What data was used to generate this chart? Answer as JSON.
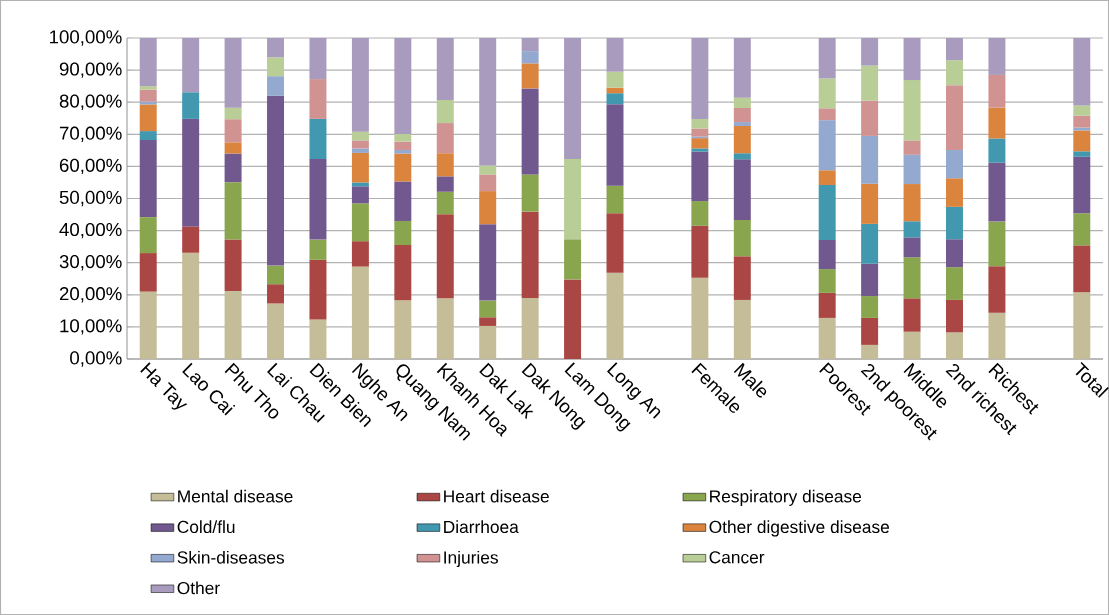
{
  "chart_data": {
    "type": "bar",
    "stacked": true,
    "categories": [
      "Ha Tay",
      "Lao Cai",
      "Phu Tho",
      "Lai Chau",
      "Dien Bien",
      "Nghe An",
      "Quang Nam",
      "Khanh Hoa",
      "Dak Lak",
      "Dak Nong",
      "Lam Dong",
      "Long An",
      null,
      "Female",
      "Male",
      null,
      "Poorest",
      "2nd poorest",
      "Middle",
      "2nd richest",
      "Richest",
      null,
      "Total"
    ],
    "series": [
      {
        "name": "Mental disease",
        "color": "#c4bd97",
        "values": [
          21.0,
          33.1,
          21.2,
          17.3,
          12.3,
          28.8,
          18.3,
          18.9,
          10.3,
          19.0,
          0,
          26.9,
          null,
          25.3,
          18.4,
          null,
          12.8,
          4.4,
          8.5,
          8.3,
          14.4,
          null,
          20.8
        ]
      },
      {
        "name": "Heart disease",
        "color": "#aa4643",
        "values": [
          12.0,
          8.2,
          16.0,
          6.0,
          18.6,
          7.9,
          17.2,
          26.2,
          2.7,
          26.9,
          24.8,
          18.5,
          null,
          16.2,
          13.6,
          null,
          7.8,
          8.4,
          10.4,
          10.1,
          14.5,
          null,
          14.6
        ]
      },
      {
        "name": "Respiratory disease",
        "color": "#89a54e",
        "values": [
          11.2,
          0,
          17.9,
          5.8,
          6.3,
          11.8,
          7.5,
          7.0,
          5.2,
          11.6,
          12.5,
          8.6,
          null,
          7.7,
          11.3,
          null,
          7.4,
          6.8,
          12.8,
          10.2,
          13.9,
          null,
          10.0
        ]
      },
      {
        "name": "Cold/flu",
        "color": "#71588f",
        "values": [
          24.0,
          33.5,
          8.9,
          52.9,
          25.1,
          5.3,
          12.3,
          4.8,
          23.8,
          26.8,
          0,
          25.4,
          null,
          15.4,
          18.9,
          null,
          9.1,
          10.1,
          6.2,
          8.7,
          18.4,
          null,
          17.6
        ]
      },
      {
        "name": "Diarrhoea",
        "color": "#4198af",
        "values": [
          2.8,
          8.3,
          0,
          0,
          12.5,
          1.2,
          0,
          0,
          0,
          0,
          0,
          3.4,
          null,
          1.0,
          1.9,
          null,
          17.1,
          12.4,
          5.0,
          10.1,
          7.5,
          null,
          1.7
        ]
      },
      {
        "name": "Other digestive disease",
        "color": "#db843d",
        "values": [
          8.3,
          0,
          3.5,
          0,
          0,
          9.2,
          8.7,
          7.2,
          10.3,
          7.8,
          0,
          1.7,
          null,
          3.2,
          8.5,
          null,
          4.6,
          12.5,
          11.6,
          8.9,
          9.6,
          null,
          6.5
        ]
      },
      {
        "name": "Skin-diseases",
        "color": "#93a9cf",
        "values": [
          0.9,
          0,
          0,
          6.1,
          0,
          1.4,
          1.1,
          0,
          0,
          3.8,
          0,
          0,
          null,
          0.5,
          1.2,
          null,
          15.6,
          14.9,
          9.1,
          8.8,
          0,
          null,
          0.9
        ]
      },
      {
        "name": "Injuries",
        "color": "#d19392",
        "values": [
          3.7,
          0,
          7.2,
          0,
          12.4,
          2.5,
          2.6,
          9.4,
          5.2,
          0,
          0,
          0,
          null,
          2.5,
          4.4,
          null,
          3.7,
          11.0,
          4.5,
          20.2,
          10.2,
          null,
          3.7
        ]
      },
      {
        "name": "Cancer",
        "color": "#b9cd96",
        "values": [
          1.1,
          0,
          3.6,
          5.9,
          0,
          2.7,
          2.4,
          7.2,
          2.8,
          0,
          25.0,
          5.0,
          null,
          3.0,
          3.2,
          null,
          9.3,
          10.9,
          18.8,
          7.8,
          0,
          null,
          3.2
        ]
      },
      {
        "name": "Other",
        "color": "#a99bbd",
        "values": [
          15.0,
          16.9,
          21.7,
          6.0,
          12.8,
          29.2,
          29.9,
          19.3,
          39.7,
          4.1,
          37.7,
          10.5,
          null,
          25.2,
          18.6,
          null,
          12.6,
          8.6,
          13.1,
          6.9,
          11.5,
          null,
          21.0
        ]
      }
    ],
    "ylim": [
      0,
      100
    ],
    "yticks": [
      {
        "value": 0,
        "label": "0,00%"
      },
      {
        "value": 10,
        "label": "10,00%"
      },
      {
        "value": 20,
        "label": "20,00%"
      },
      {
        "value": 30,
        "label": "30,00%"
      },
      {
        "value": 40,
        "label": "40,00%"
      },
      {
        "value": 50,
        "label": "50,00%"
      },
      {
        "value": 60,
        "label": "60,00%"
      },
      {
        "value": 70,
        "label": "70,00%"
      },
      {
        "value": 80,
        "label": "80,00%"
      },
      {
        "value": 90,
        "label": "90,00%"
      },
      {
        "value": 100,
        "label": "100,00%"
      }
    ],
    "grid": "y",
    "legend": "bottom"
  }
}
